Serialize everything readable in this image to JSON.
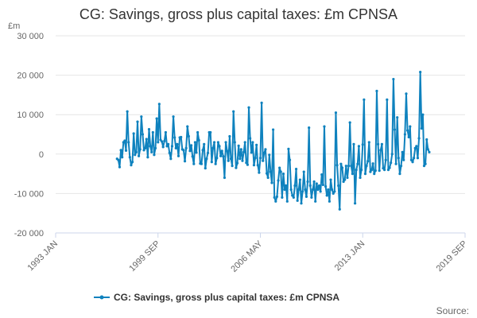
{
  "chart_data": {
    "type": "line",
    "title": "CG: Savings, gross plus capital taxes: £m CPNSA",
    "ylabel": "£m",
    "xlabel": "",
    "ylim": [
      -20000,
      30000
    ],
    "yticks": [
      30000,
      20000,
      10000,
      0,
      -10000,
      -20000
    ],
    "ytick_labels": [
      "30 000",
      "20 000",
      "10 000",
      "0",
      "-10 000",
      "-20 000"
    ],
    "xlim": [
      "1993 JAN",
      "2019 SEP"
    ],
    "xticks": [
      "1993 JAN",
      "1999 SEP",
      "2006 MAY",
      "2013 JAN",
      "2019 SEP"
    ],
    "grid": true,
    "legend_position": "bottom",
    "series": [
      {
        "name": "CG: Savings, gross plus capital taxes: £m CPNSA",
        "color": "#0f82be",
        "start": "1997 JAN",
        "frequency": "monthly",
        "values": [
          -1200,
          -1500,
          -3300,
          1000,
          -800,
          3000,
          3400,
          900,
          10800,
          3000,
          -800,
          -2800,
          -2000,
          5200,
          -200,
          500,
          8200,
          -500,
          1200,
          9500,
          5000,
          1000,
          1500,
          3800,
          -800,
          6300,
          2000,
          500,
          5500,
          -200,
          1500,
          9000,
          3000,
          12700,
          3600,
          3200,
          1800,
          3300,
          5500,
          2000,
          2500,
          300,
          -1200,
          2000,
          9500,
          4200,
          1500,
          2500,
          -500,
          4200,
          4300,
          1200,
          1000,
          -1800,
          1500,
          7000,
          4500,
          800,
          2200,
          -600,
          -2500,
          3000,
          400,
          5500,
          3500,
          -2400,
          -2500,
          1000,
          2500,
          -3600,
          -1200,
          300,
          5500,
          5500,
          -2000,
          1500,
          3000,
          -2500,
          -1000,
          3000,
          2000,
          -500,
          800,
          -600,
          -6000,
          3000,
          800,
          -1700,
          4500,
          -1200,
          -3000,
          10800,
          3000,
          -3500,
          -2300,
          2100,
          -1200,
          1200,
          -1700,
          500,
          3000,
          -2200,
          -2700,
          11800,
          4000,
          400,
          3000,
          -2800,
          -1000,
          2300,
          -2800,
          -4700,
          -1000,
          13000,
          -1700,
          300,
          1200,
          -4900,
          -6000,
          -200,
          -4500,
          -7300,
          6200,
          -11000,
          -12000,
          -10800,
          -6700,
          -3500,
          -4500,
          -11000,
          -5000,
          -9000,
          -8000,
          -12000,
          1300,
          -1500,
          -9000,
          -10500,
          -11000,
          -8000,
          -3800,
          -11800,
          -9000,
          -6500,
          -12500,
          -9500,
          -4500,
          -9000,
          -10800,
          -7000,
          6700,
          -8000,
          -11000,
          -9000,
          -7000,
          -12000,
          -7500,
          -9000,
          -8000,
          -9500,
          -5200,
          -7800,
          7000,
          -8200,
          -10500,
          -9000,
          -12000,
          -6500,
          -9000,
          -10000,
          -9500,
          10500,
          -2800,
          -8000,
          -14000,
          -2500,
          -3500,
          -7000,
          -6500,
          -3000,
          -6000,
          -3000,
          8000,
          -3000,
          -5000,
          2500,
          -12500,
          -4000,
          -2500,
          2000,
          -6000,
          -4000,
          2400,
          13800,
          -5000,
          -3000,
          -1800,
          3000,
          -4500,
          -4000,
          -2400,
          -5000,
          -4200,
          16000,
          2500,
          -4200,
          1000,
          2500,
          -3600,
          -4000,
          -1500,
          13800,
          -4000,
          -3500,
          -2200,
          0,
          19000,
          6200,
          -2500,
          9300,
          -1000,
          -5000,
          -3000,
          500,
          -1500,
          5000,
          15300,
          6000,
          4300,
          7000,
          -1500,
          -2000,
          -1000,
          1500,
          2000,
          -1000,
          4000,
          20800,
          6500,
          10000,
          -3000,
          -2500,
          3700,
          1200,
          500
        ]
      }
    ],
    "source_label": "Source:"
  }
}
